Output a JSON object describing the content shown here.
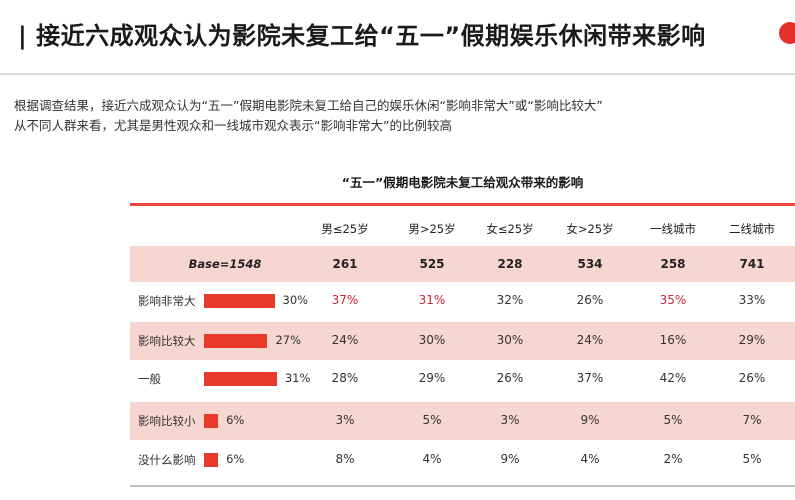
{
  "header": {
    "title": "| 接近六成观众认为影院未复工给“五一”假期娱乐休闲带来影响"
  },
  "intro": {
    "line1": "根据调查结果，接近六成观众认为“五一”假期电影院未复工给自己的娱乐休闲“影响非常大”或“影响比较大”",
    "line2": "从不同人群来看，尤其是男性观众和一线城市观众表示“影响非常大”的比例较高"
  },
  "colors": {
    "accent": "#e8392a",
    "band": "#f7d6d2",
    "highlight": "#c8283a"
  },
  "chart_data": {
    "type": "table",
    "title": "“五一”假期电影院未复工给观众带来的影响",
    "base_label": "Base=1548",
    "columns": [
      "男≤25岁",
      "男>25岁",
      "女≤25岁",
      "女>25岁",
      "一线城市",
      "二线城市"
    ],
    "base": [
      "261",
      "525",
      "228",
      "534",
      "258",
      "741"
    ],
    "rows": [
      {
        "label": "影响非常大",
        "total": 30,
        "total_label": "30%",
        "values": [
          "37%",
          "31%",
          "32%",
          "26%",
          "35%",
          "33%"
        ],
        "highlight": [
          true,
          true,
          false,
          false,
          true,
          false
        ]
      },
      {
        "label": "影响比较大",
        "total": 27,
        "total_label": "27%",
        "values": [
          "24%",
          "30%",
          "30%",
          "24%",
          "16%",
          "29%"
        ],
        "highlight": [
          false,
          false,
          false,
          false,
          false,
          false
        ]
      },
      {
        "label": "一般",
        "total": 31,
        "total_label": "31%",
        "values": [
          "28%",
          "29%",
          "26%",
          "37%",
          "42%",
          "26%"
        ],
        "highlight": [
          false,
          false,
          false,
          false,
          false,
          false
        ]
      },
      {
        "label": "影响比较小",
        "total": 6,
        "total_label": "6%",
        "values": [
          "3%",
          "5%",
          "3%",
          "9%",
          "5%",
          "7%"
        ],
        "highlight": [
          false,
          false,
          false,
          false,
          false,
          false
        ]
      },
      {
        "label": "没什么影响",
        "total": 6,
        "total_label": "6%",
        "values": [
          "8%",
          "4%",
          "9%",
          "4%",
          "2%",
          "5%"
        ],
        "highlight": [
          false,
          false,
          false,
          false,
          false,
          false
        ]
      }
    ]
  }
}
